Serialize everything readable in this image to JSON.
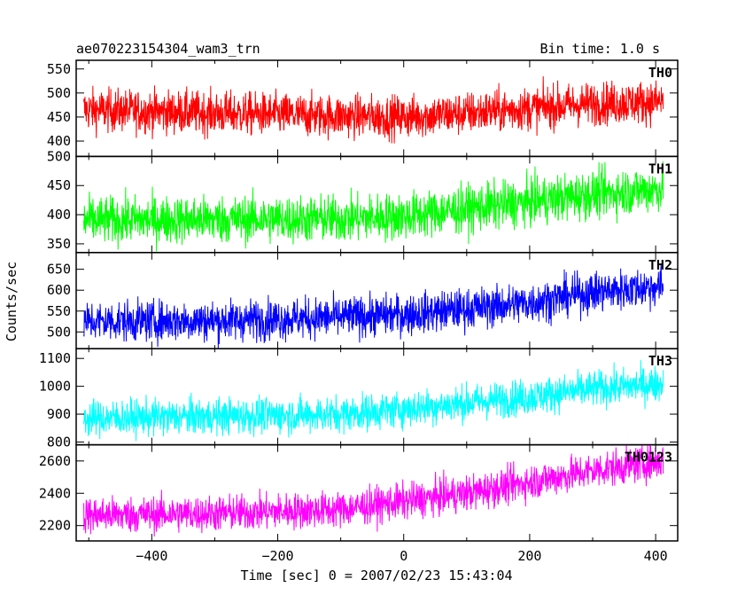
{
  "chart_data": {
    "type": "line",
    "title": "ae070223154304_wam3_trn",
    "subtitle": "Bin time: 1.0 s",
    "xlabel": "Time [sec] 0 = 2007/02/23 15:43:04",
    "ylabel": "Counts/sec",
    "xlim": [
      -520,
      435
    ],
    "x_ticks": [
      -400,
      -200,
      0,
      200,
      400
    ],
    "x_tick_labels": [
      "−400",
      "−200",
      "0",
      "200",
      "400"
    ],
    "x_data_range": [
      -508,
      412
    ],
    "bin_seconds": 1.0,
    "grid": false,
    "panels": [
      {
        "name": "TH0",
        "color": "#ff0000",
        "ylim": [
          368,
          568
        ],
        "y_ticks": [
          400,
          450,
          500,
          550
        ],
        "y_tick_labels": [
          "400",
          "450",
          "500",
          "550"
        ],
        "trend_x": [
          -508,
          -300,
          -100,
          0,
          100,
          200,
          300,
          412
        ],
        "trend_y": [
          465,
          458,
          452,
          450,
          458,
          468,
          478,
          482
        ],
        "noise": 22
      },
      {
        "name": "TH1",
        "color": "#00ff00",
        "ylim": [
          335,
          500
        ],
        "y_ticks": [
          350,
          400,
          450,
          500
        ],
        "y_tick_labels": [
          "350",
          "400",
          "450",
          "500"
        ],
        "trend_x": [
          -508,
          -300,
          -100,
          0,
          100,
          200,
          300,
          412
        ],
        "trend_y": [
          390,
          392,
          393,
          397,
          410,
          422,
          435,
          445
        ],
        "noise": 20
      },
      {
        "name": "TH2",
        "color": "#0000ff",
        "ylim": [
          460,
          690
        ],
        "y_ticks": [
          500,
          550,
          600,
          650
        ],
        "y_tick_labels": [
          "500",
          "550",
          "600",
          "650"
        ],
        "trend_x": [
          -508,
          -300,
          -100,
          0,
          100,
          200,
          300,
          412
        ],
        "trend_y": [
          525,
          527,
          535,
          542,
          555,
          570,
          595,
          610
        ],
        "noise": 24
      },
      {
        "name": "TH3",
        "color": "#00ffff",
        "ylim": [
          790,
          1135
        ],
        "y_ticks": [
          800,
          900,
          1000,
          1100
        ],
        "y_tick_labels": [
          "800",
          "900",
          "1000",
          "1100"
        ],
        "trend_x": [
          -508,
          -300,
          -100,
          0,
          100,
          200,
          300,
          412
        ],
        "trend_y": [
          885,
          892,
          900,
          918,
          940,
          962,
          990,
          1010
        ],
        "noise": 32
      },
      {
        "name": "TH0123",
        "color": "#ff00ff",
        "ylim": [
          2105,
          2700
        ],
        "y_ticks": [
          2200,
          2400,
          2600
        ],
        "y_tick_labels": [
          "2200",
          "2400",
          "2600"
        ],
        "trend_x": [
          -508,
          -300,
          -100,
          0,
          100,
          200,
          300,
          412
        ],
        "trend_y": [
          2265,
          2275,
          2300,
          2350,
          2400,
          2470,
          2540,
          2600
        ],
        "noise": 55
      }
    ]
  }
}
